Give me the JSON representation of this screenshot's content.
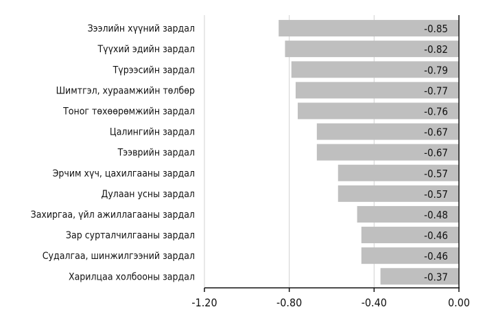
{
  "chart_data": {
    "type": "bar",
    "orientation": "horizontal",
    "categories": [
      "Зээлийн хүүний зардал",
      "Түүхий эдийн зардал",
      "Түрээсийн зардал",
      "Шимтгэл, хураамжийн төлбөр",
      "Тоног төхөөрөмжийн зардал",
      "Цалингийн зардал",
      "Тээврийн зардал",
      "Эрчим хүч, цахилгааны зардал",
      "Дулаан усны зардал",
      "Захиргаа, үйл ажиллагааны зардал",
      "Зар сурталчилгааны зардал",
      "Судалгаа, шинжилгээний зардал",
      "Харилцаа холбооны зардал"
    ],
    "values": [
      -0.85,
      -0.82,
      -0.79,
      -0.77,
      -0.76,
      -0.67,
      -0.67,
      -0.57,
      -0.57,
      -0.48,
      -0.46,
      -0.46,
      -0.37
    ],
    "value_labels": [
      "-0.85",
      "-0.82",
      "-0.79",
      "-0.77",
      "-0.76",
      "-0.67",
      "-0.67",
      "-0.57",
      "-0.57",
      "-0.48",
      "-0.46",
      "-0.46",
      "-0.37"
    ],
    "xlim": [
      -1.2,
      0.0
    ],
    "xticks": [
      -1.2,
      -0.8,
      -0.4,
      0.0
    ],
    "xtick_labels": [
      "-1.20",
      "-0.80",
      "-0.40",
      "0.00"
    ],
    "grid": "vertical",
    "legend": "none",
    "bar_color": "#bfbfbf",
    "grid_color": "#d0d0d0",
    "axis_color": "#111111"
  }
}
